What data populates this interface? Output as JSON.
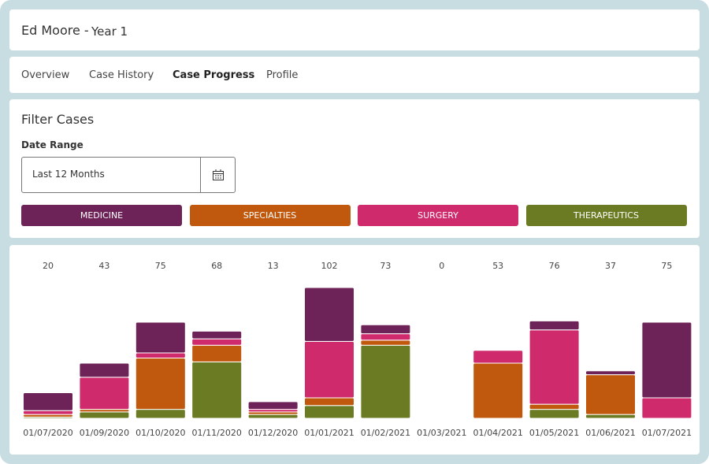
{
  "header": {
    "name": "Ed Moore -",
    "year": "Year 1"
  },
  "tabs": [
    "Overview",
    "Case History",
    "Case Progress",
    "Profile"
  ],
  "active_tab": 2,
  "filter": {
    "title": "Filter Cases",
    "date_range_label": "Date Range",
    "date_range_value": "Last 12 Months"
  },
  "chart_data": {
    "type": "stacked_bar",
    "categories": [
      "01/07/2020",
      "01/09/2020",
      "01/10/2020",
      "01/11/2020",
      "01/12/2020",
      "01/01/2021",
      "01/02/2021",
      "01/03/2021",
      "01/04/2021",
      "01/05/2021",
      "01/06/2021",
      "01/07/2021"
    ],
    "totals": [
      20,
      43,
      75,
      68,
      13,
      102,
      73,
      0,
      53,
      76,
      37,
      75
    ],
    "series": [
      {
        "name": "MEDICINE",
        "color": "#6e2358",
        "values": [
          14,
          11,
          24,
          6,
          6,
          42,
          7,
          0,
          0,
          7,
          3,
          59
        ]
      },
      {
        "name": "SPECIALTIES",
        "color": "#c0590d",
        "values": [
          2,
          2,
          40,
          13,
          2,
          6,
          4,
          0,
          43,
          4,
          31,
          0
        ]
      },
      {
        "name": "SURGERY",
        "color": "#cf2a6c",
        "values": [
          3,
          25,
          4,
          5,
          2,
          44,
          5,
          0,
          10,
          58,
          0,
          16
        ]
      },
      {
        "name": "THERAPEUTICS",
        "color": "#6b7b23",
        "values": [
          1,
          5,
          7,
          44,
          3,
          10,
          57,
          0,
          0,
          7,
          3,
          0
        ]
      }
    ],
    "stack_order": [
      3,
      1,
      2,
      0
    ]
  }
}
